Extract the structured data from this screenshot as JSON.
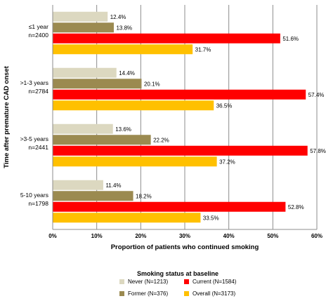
{
  "chart_data": {
    "type": "bar",
    "orientation": "horizontal",
    "categories": [
      "≤1 year|n=2400",
      ">1-3 years|n=2784",
      ">3-5 years|n=2441",
      "5-10 years|n=1798"
    ],
    "series": [
      {
        "name": "Never (N=1213)",
        "color": "#dcd8c0",
        "values": [
          12.4,
          14.4,
          13.6,
          11.4
        ],
        "labels": [
          "12.4%",
          "14.4%",
          "13.6%",
          "11.4%"
        ]
      },
      {
        "name": "Former (N=376)",
        "color": "#9b8a50",
        "values": [
          13.8,
          20.1,
          22.2,
          18.2
        ],
        "labels": [
          "13.8%",
          "20.1%",
          "22.2%",
          "18.2%"
        ]
      },
      {
        "name": "Current (N=1584)",
        "color": "#ff0000",
        "values": [
          51.6,
          57.4,
          57.8,
          52.8
        ],
        "labels": [
          "51.6%",
          "57.4%",
          "57.8%",
          "52.8%"
        ]
      },
      {
        "name": "Overall (N=3173)",
        "color": "#ffc000",
        "values": [
          31.7,
          36.5,
          37.2,
          33.5
        ],
        "labels": [
          "31.7%",
          "36.5%",
          "37.2%",
          "33.5%"
        ]
      }
    ],
    "xlim": [
      0,
      60
    ],
    "xticks": [
      "0%",
      "10%",
      "20%",
      "30%",
      "40%",
      "50%",
      "60%"
    ],
    "xlabel": "Proportion of patients who continued smoking",
    "ylabel": "Time after premature CAD onset",
    "legend_title": "Smoking status at baseline",
    "legend_position": "bottom",
    "grid": true
  }
}
